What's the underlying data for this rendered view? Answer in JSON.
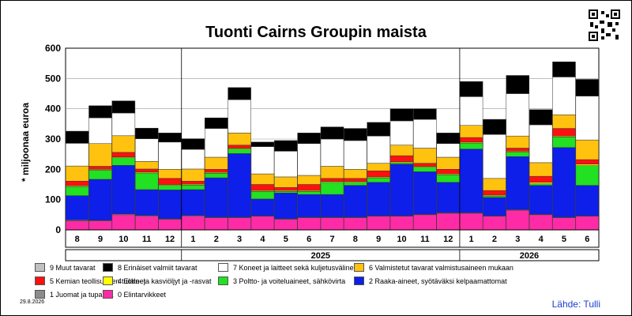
{
  "chart_data": {
    "type": "bar",
    "stacked": true,
    "title": "Tuonti Cairns Groupin maista",
    "ylabel": "* miljoonaa euroa",
    "ylim": [
      0,
      600
    ],
    "yticks": [
      0,
      100,
      200,
      300,
      400,
      500,
      600
    ],
    "grid": true,
    "legend_position": "bottom",
    "categories": [
      "8",
      "9",
      "10",
      "11",
      "12",
      "1",
      "2",
      "3",
      "4",
      "5",
      "6",
      "7",
      "8",
      "9",
      "10",
      "11",
      "12",
      "1",
      "2",
      "3",
      "4",
      "5",
      "6"
    ],
    "year_groups": [
      {
        "label": "",
        "start": 0,
        "count": 5
      },
      {
        "label": "2025",
        "start": 5,
        "count": 12
      },
      {
        "label": "2026",
        "start": 17,
        "count": 6
      }
    ],
    "series": [
      {
        "name": "0 Elintarvikkeet",
        "color": "#ff2ba6",
        "values": [
          30,
          30,
          50,
          45,
          35,
          45,
          40,
          40,
          45,
          35,
          40,
          40,
          40,
          45,
          45,
          50,
          55,
          55,
          45,
          65,
          50,
          40,
          45
        ]
      },
      {
        "name": "1 Juomat ja tupakka",
        "color": "#8c8c8c",
        "values": [
          3,
          2,
          3,
          3,
          2,
          3,
          2,
          2,
          2,
          2,
          2,
          2,
          2,
          2,
          2,
          2,
          2,
          2,
          2,
          2,
          2,
          2,
          2
        ]
      },
      {
        "name": "2 Raaka-aineet, syötäväksi kelpaamattomat",
        "color": "#0d1fe8",
        "values": [
          80,
          135,
          160,
          85,
          95,
          85,
          130,
          210,
          55,
          85,
          75,
          75,
          105,
          110,
          170,
          140,
          100,
          210,
          60,
          175,
          95,
          230,
          100
        ]
      },
      {
        "name": "3 Poltto- ja voiteluaineet, sähkövirta",
        "color": "#22e022",
        "values": [
          30,
          30,
          25,
          55,
          15,
          15,
          15,
          15,
          25,
          5,
          10,
          40,
          10,
          15,
          5,
          15,
          25,
          20,
          5,
          15,
          5,
          35,
          65
        ]
      },
      {
        "name": "4 Eläin- ja kasviöljyt ja -rasvat",
        "color": "#ffff00",
        "values": [
          3,
          3,
          3,
          3,
          3,
          3,
          3,
          3,
          3,
          3,
          3,
          3,
          3,
          3,
          3,
          3,
          3,
          3,
          3,
          3,
          5,
          3,
          5
        ]
      },
      {
        "name": "5 Kemian teollisuuden tuotteet",
        "color": "#ff1010",
        "values": [
          15,
          10,
          15,
          10,
          20,
          10,
          10,
          10,
          20,
          10,
          20,
          10,
          10,
          20,
          20,
          10,
          15,
          15,
          15,
          10,
          20,
          25,
          15
        ]
      },
      {
        "name": "6 Valmistetut tavarat valmistusaineen mukaan",
        "color": "#ffc20e",
        "values": [
          50,
          75,
          55,
          25,
          30,
          40,
          40,
          40,
          35,
          35,
          30,
          40,
          30,
          25,
          35,
          50,
          40,
          40,
          40,
          40,
          45,
          45,
          65
        ]
      },
      {
        "name": "7 Koneet ja laitteet sekä kuljetusvälineet",
        "color": "#ffffff",
        "values": [
          75,
          85,
          75,
          75,
          90,
          65,
          95,
          110,
          90,
          85,
          105,
          90,
          95,
          90,
          80,
          95,
          45,
          95,
          145,
          140,
          125,
          125,
          145
        ]
      },
      {
        "name": "8 Erinäiset valmiit tavarat",
        "color": "#000000",
        "values": [
          40,
          40,
          40,
          35,
          30,
          35,
          35,
          40,
          15,
          35,
          35,
          40,
          40,
          45,
          40,
          35,
          35,
          50,
          50,
          60,
          50,
          50,
          55
        ]
      },
      {
        "name": "9 Muut tavarat",
        "color": "#c0c0c0",
        "values": [
          0,
          0,
          0,
          0,
          0,
          0,
          0,
          0,
          0,
          0,
          0,
          0,
          0,
          0,
          0,
          0,
          0,
          0,
          0,
          0,
          0,
          0,
          0
        ]
      }
    ]
  },
  "meta": {
    "date_stamp": "29.8.2026",
    "source": "Lähde: Tulli"
  }
}
